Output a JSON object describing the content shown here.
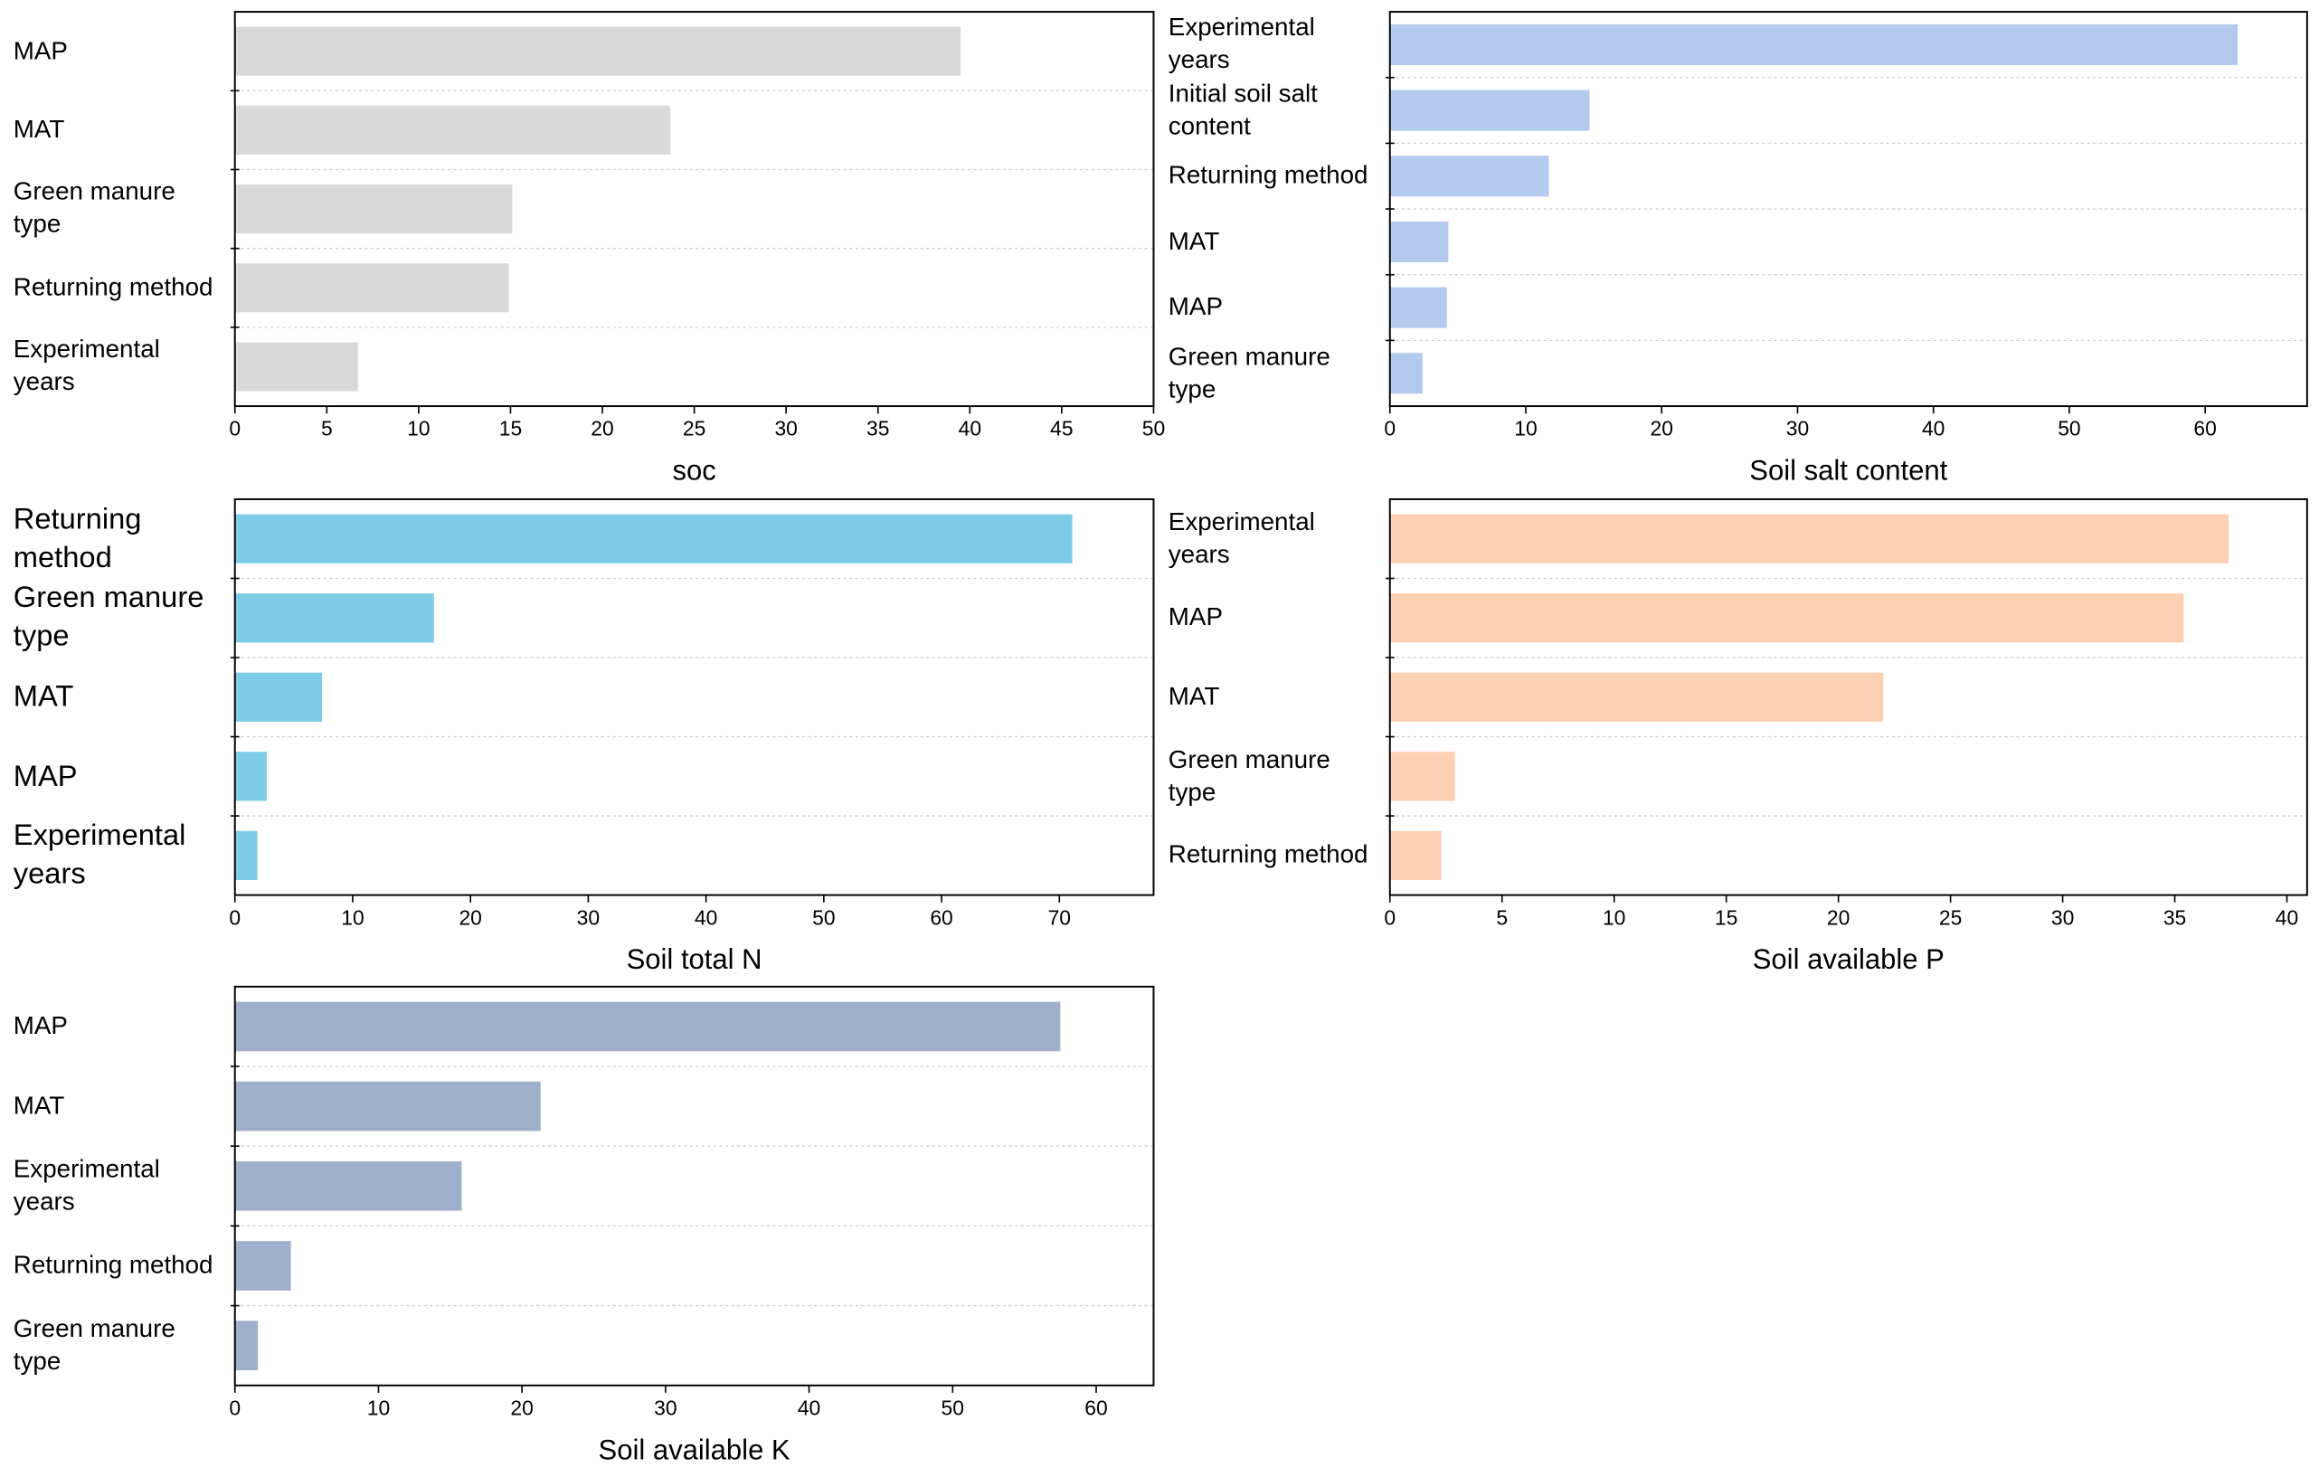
{
  "chart_data": [
    {
      "type": "bar",
      "orientation": "horizontal",
      "x_label": "soc",
      "categories": [
        "MAP",
        "MAT",
        "Green manure type",
        "Returning method",
        "Experimental years"
      ],
      "values": [
        39.5,
        23.7,
        15.1,
        14.9,
        6.7
      ],
      "color": "#d9d9d9",
      "xlim": [
        0,
        50
      ],
      "xticks": [
        0,
        5,
        10,
        15,
        20,
        25,
        30,
        35,
        40,
        45,
        50
      ],
      "grid": true
    },
    {
      "type": "bar",
      "orientation": "horizontal",
      "x_label": "Soil salt content",
      "categories": [
        "Experimental years",
        "Initial soil salt content",
        "Returning method",
        "MAT",
        "MAP",
        "Green manure type"
      ],
      "values": [
        62.4,
        14.7,
        11.7,
        4.3,
        4.2,
        2.4
      ],
      "color": "#b4c9ee",
      "xlim": [
        0,
        67.5
      ],
      "xticks": [
        0,
        10,
        20,
        30,
        40,
        50,
        60
      ],
      "grid": true
    },
    {
      "type": "bar",
      "orientation": "horizontal",
      "x_label": "Soil total N",
      "categories": [
        "Returning method",
        "Green manure type",
        "MAT",
        "MAP",
        "Experimental years"
      ],
      "values": [
        71.1,
        16.9,
        7.4,
        2.7,
        1.9
      ],
      "color": "#7ecde6",
      "xlim": [
        0,
        78
      ],
      "xticks": [
        0,
        10,
        20,
        30,
        40,
        50,
        60,
        70
      ],
      "grid": true
    },
    {
      "type": "bar",
      "orientation": "horizontal",
      "x_label": "Soil available P",
      "categories": [
        "Experimental years",
        "MAP",
        "MAT",
        "Green manure type",
        "Returning method"
      ],
      "values": [
        37.4,
        35.4,
        22.0,
        2.9,
        2.3
      ],
      "color": "#fdd0b4",
      "xlim": [
        0,
        40.9
      ],
      "xticks": [
        0,
        5,
        10,
        15,
        20,
        25,
        30,
        35,
        40
      ],
      "grid": true
    },
    {
      "type": "bar",
      "orientation": "horizontal",
      "x_label": "Soil available K",
      "categories": [
        "MAP",
        "MAT",
        "Experimental years",
        "Returning method",
        "Green manure type"
      ],
      "values": [
        57.5,
        21.3,
        15.8,
        3.9,
        1.6
      ],
      "color": "#9fb0cc",
      "xlim": [
        0,
        64
      ],
      "xticks": [
        0,
        10,
        20,
        30,
        40,
        50,
        60
      ],
      "grid": true
    }
  ]
}
